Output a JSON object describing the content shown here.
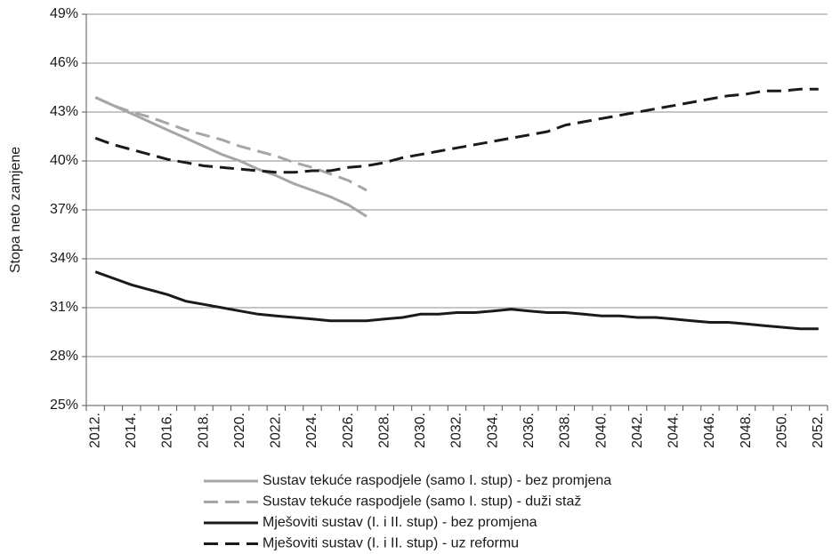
{
  "chart_data": {
    "type": "line",
    "y_label": "Stopa neto zamjene",
    "categories": [
      "2012.",
      null,
      "2014.",
      null,
      "2016.",
      null,
      "2018.",
      null,
      "2020.",
      null,
      "2022.",
      null,
      "2024.",
      null,
      "2026.",
      null,
      "2028.",
      null,
      "2030.",
      null,
      "2032.",
      null,
      "2034.",
      null,
      "2036.",
      null,
      "2038.",
      null,
      "2040.",
      null,
      "2042.",
      null,
      "2044.",
      null,
      "2046.",
      null,
      "2048.",
      null,
      "2050.",
      null,
      "2052."
    ],
    "ylim": [
      25,
      49
    ],
    "yticks": [
      {
        "value": 25,
        "label": "25%"
      },
      {
        "value": 28,
        "label": "28%"
      },
      {
        "value": 31,
        "label": "31%"
      },
      {
        "value": 34,
        "label": "34%"
      },
      {
        "value": 37,
        "label": "37%"
      },
      {
        "value": 40,
        "label": "40%"
      },
      {
        "value": 43,
        "label": "43%"
      },
      {
        "value": 46,
        "label": "46%"
      },
      {
        "value": 49,
        "label": "49%"
      }
    ],
    "grid": true,
    "legend": "bottom",
    "series": [
      {
        "name": "Sustav tekuće raspodjele (samo I. stup) - bez promjena",
        "color": "#a6a6a6",
        "line_style": "solid",
        "values": [
          43.9,
          43.4,
          42.9,
          42.4,
          41.9,
          41.4,
          40.9,
          40.4,
          40.0,
          39.5,
          39.1,
          38.6,
          38.2,
          37.8,
          37.3,
          36.6,
          null,
          null,
          null,
          null,
          null,
          null,
          null,
          null,
          null,
          null,
          null,
          null,
          null,
          null,
          null,
          null,
          null,
          null,
          null,
          null,
          null,
          null,
          null,
          null,
          null
        ]
      },
      {
        "name": "Sustav tekuće raspodjele (samo I. stup) - duži staž",
        "color": "#a6a6a6",
        "line_style": "dashed",
        "values": [
          43.9,
          43.4,
          43.0,
          42.7,
          42.3,
          41.9,
          41.6,
          41.3,
          40.9,
          40.6,
          40.3,
          39.9,
          39.6,
          39.2,
          38.8,
          38.2,
          null,
          null,
          null,
          null,
          null,
          null,
          null,
          null,
          null,
          null,
          null,
          null,
          null,
          null,
          null,
          null,
          null,
          null,
          null,
          null,
          null,
          null,
          null,
          null,
          null
        ]
      },
      {
        "name": "Mješoviti sustav (I. i II. stup) - bez promjena",
        "color": "#1a1a1a",
        "line_style": "solid",
        "values": [
          33.2,
          32.8,
          32.4,
          32.1,
          31.8,
          31.4,
          31.2,
          31.0,
          30.8,
          30.6,
          30.5,
          30.4,
          30.3,
          30.2,
          30.2,
          30.2,
          30.3,
          30.4,
          30.6,
          30.6,
          30.7,
          30.7,
          30.8,
          30.9,
          30.8,
          30.7,
          30.7,
          30.6,
          30.5,
          30.5,
          30.4,
          30.4,
          30.3,
          30.2,
          30.1,
          30.1,
          30.0,
          29.9,
          29.8,
          29.7,
          29.7
        ]
      },
      {
        "name": "Mješoviti sustav (I. i II. stup) - uz reformu",
        "color": "#1a1a1a",
        "line_style": "dashed",
        "values": [
          41.4,
          41.0,
          40.7,
          40.4,
          40.1,
          39.9,
          39.7,
          39.6,
          39.5,
          39.4,
          39.3,
          39.3,
          39.4,
          39.4,
          39.6,
          39.7,
          39.9,
          40.2,
          40.4,
          40.6,
          40.8,
          41.0,
          41.2,
          41.4,
          41.6,
          41.8,
          42.2,
          42.4,
          42.6,
          42.8,
          43.0,
          43.2,
          43.4,
          43.6,
          43.8,
          44.0,
          44.1,
          44.3,
          44.3,
          44.4,
          44.4
        ]
      }
    ]
  }
}
